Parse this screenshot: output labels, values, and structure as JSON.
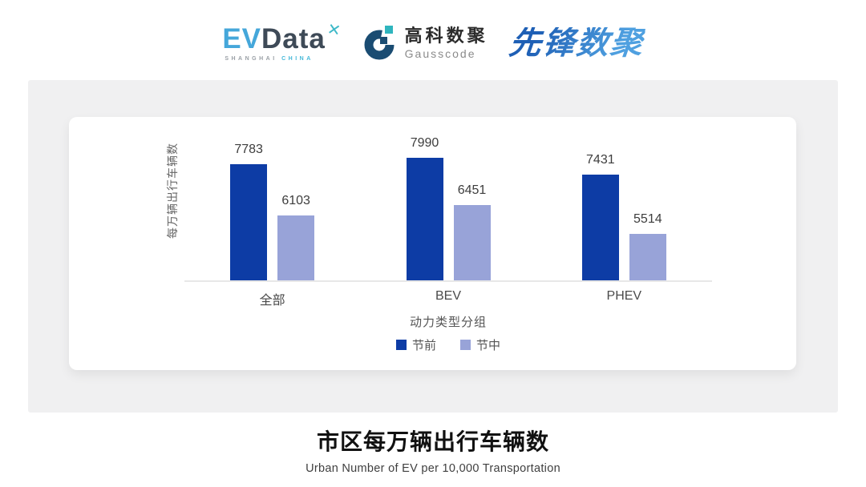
{
  "header": {
    "evdata": {
      "ev": "EV",
      "data": "Data",
      "mark": "x-star",
      "sub_left": "SHANGHAI",
      "sub_right": "CHINA"
    },
    "gausscode": {
      "cn": "高科数聚",
      "en": "Gausscode"
    },
    "pioneer": {
      "text": "先锋数聚"
    }
  },
  "chart_data": {
    "type": "bar",
    "title": "市区每万辆出行车辆数",
    "subtitle": "Urban Number of EV per 10,000 Transportation",
    "xlabel": "动力类型分组",
    "ylabel": "每万辆出行车辆数",
    "categories": [
      "全部",
      "BEV",
      "PHEV"
    ],
    "series": [
      {
        "name": "节前",
        "color": "#0D3CA5",
        "values": [
          7783,
          7990,
          7431
        ]
      },
      {
        "name": "节中",
        "color": "#98A3D8",
        "values": [
          6103,
          6451,
          5514
        ]
      }
    ],
    "ylim": [
      4000,
      8200
    ],
    "grid": false,
    "value_labels": true,
    "legend_position": "bottom"
  },
  "colors": {
    "panel_bg": "#F0F0F1",
    "card_bg": "#FFFFFF",
    "axis_line": "#E8E8E8",
    "evdata_blue": "#45A7DA",
    "evdata_slate": "#3E4A57",
    "evdata_teal": "#3EB9C8",
    "gausscode_navy": "#1A4C72",
    "gausscode_teal": "#2FB5BE",
    "pioneer_blue": "#2D7BC9"
  }
}
